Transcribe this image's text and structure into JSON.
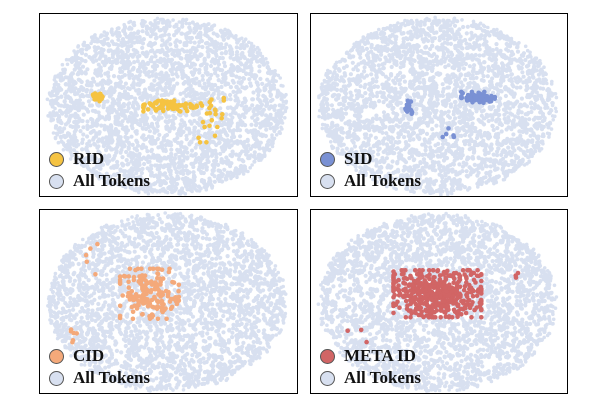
{
  "background_color": "#d8e0f0",
  "chart_data": [
    {
      "type": "scatter",
      "series": [
        {
          "name": "RID",
          "color": "#f5c342",
          "clusters": [
            {
              "cx": -0.6,
              "cy": 0.1,
              "rx": 0.06,
              "ry": 0.05,
              "n": 25
            },
            {
              "cx": 0.05,
              "cy": 0.0,
              "rx": 0.28,
              "ry": 0.07,
              "n": 70
            },
            {
              "cx": 0.38,
              "cy": -0.15,
              "rx": 0.12,
              "ry": 0.3,
              "n": 22
            }
          ]
        },
        {
          "name": "All Tokens",
          "color": "#d8e0f0"
        }
      ]
    },
    {
      "type": "scatter",
      "series": [
        {
          "name": "SID",
          "color": "#7a91d4",
          "clusters": [
            {
              "cx": 0.35,
              "cy": 0.1,
              "rx": 0.16,
              "ry": 0.07,
              "n": 60
            },
            {
              "cx": -0.25,
              "cy": 0.0,
              "rx": 0.07,
              "ry": 0.1,
              "n": 15
            },
            {
              "cx": 0.1,
              "cy": -0.25,
              "rx": 0.1,
              "ry": 0.12,
              "n": 5
            }
          ]
        },
        {
          "name": "All Tokens",
          "color": "#d8e0f0"
        }
      ]
    },
    {
      "type": "scatter",
      "series": [
        {
          "name": "CID",
          "color": "#f4a97a",
          "clusters": [
            {
              "cx": -0.15,
              "cy": 0.1,
              "rx": 0.28,
              "ry": 0.32,
              "n": 170
            },
            {
              "cx": -0.8,
              "cy": -0.4,
              "rx": 0.05,
              "ry": 0.1,
              "n": 6
            },
            {
              "cx": -0.6,
              "cy": 0.5,
              "rx": 0.2,
              "ry": 0.3,
              "n": 5
            }
          ]
        },
        {
          "name": "All Tokens",
          "color": "#d8e0f0"
        }
      ]
    },
    {
      "type": "scatter",
      "series": [
        {
          "name": "META ID",
          "color": "#d16565",
          "clusters": [
            {
              "cx": 0.0,
              "cy": 0.1,
              "rx": 0.42,
              "ry": 0.3,
              "n": 460
            },
            {
              "cx": 0.7,
              "cy": 0.3,
              "rx": 0.05,
              "ry": 0.05,
              "n": 3
            },
            {
              "cx": -0.7,
              "cy": -0.3,
              "rx": 0.1,
              "ry": 0.2,
              "n": 3
            }
          ]
        },
        {
          "name": "All Tokens",
          "color": "#d8e0f0"
        }
      ]
    }
  ]
}
